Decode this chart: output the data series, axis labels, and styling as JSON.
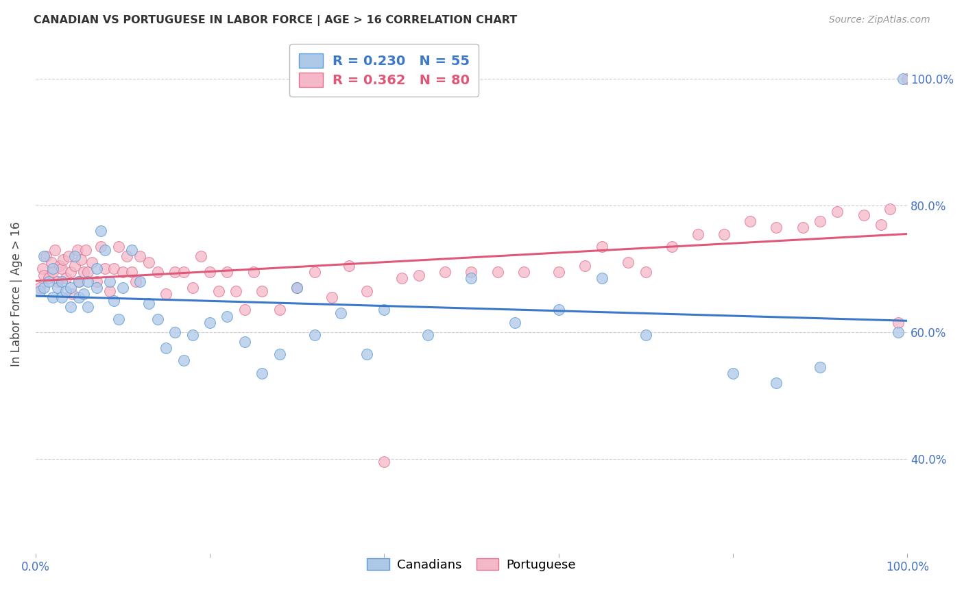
{
  "title": "CANADIAN VS PORTUGUESE IN LABOR FORCE | AGE > 16 CORRELATION CHART",
  "source": "Source: ZipAtlas.com",
  "ylabel": "In Labor Force | Age > 16",
  "x_tick_labels": [
    "0.0%",
    "",
    "",
    "",
    "",
    "100.0%"
  ],
  "x_tick_positions": [
    0.0,
    0.2,
    0.4,
    0.6,
    0.8,
    1.0
  ],
  "y_tick_labels_right": [
    "40.0%",
    "60.0%",
    "80.0%",
    "100.0%"
  ],
  "y_tick_vals_right": [
    0.4,
    0.6,
    0.8,
    1.0
  ],
  "xlim": [
    0.0,
    1.0
  ],
  "ylim": [
    0.25,
    1.07
  ],
  "canadian_fill_color": "#aec8e8",
  "canadian_edge_color": "#5b9bd5",
  "portuguese_fill_color": "#f4b8c8",
  "portuguese_edge_color": "#e07090",
  "canadian_line_color": "#3c78c8",
  "portuguese_line_color": "#e05878",
  "R_canadian": 0.23,
  "N_canadian": 55,
  "R_portuguese": 0.362,
  "N_portuguese": 80,
  "background_color": "#ffffff",
  "grid_color": "#cccccc",
  "title_color": "#333333",
  "axis_label_color": "#4472c4",
  "canadian_x": [
    0.005,
    0.01,
    0.01,
    0.015,
    0.02,
    0.02,
    0.025,
    0.03,
    0.03,
    0.035,
    0.04,
    0.04,
    0.045,
    0.05,
    0.05,
    0.055,
    0.06,
    0.06,
    0.07,
    0.07,
    0.075,
    0.08,
    0.085,
    0.09,
    0.095,
    0.1,
    0.11,
    0.12,
    0.13,
    0.14,
    0.15,
    0.16,
    0.17,
    0.18,
    0.2,
    0.22,
    0.24,
    0.26,
    0.28,
    0.3,
    0.32,
    0.35,
    0.38,
    0.4,
    0.45,
    0.5,
    0.55,
    0.6,
    0.65,
    0.7,
    0.8,
    0.85,
    0.9,
    0.99,
    0.995
  ],
  "canadian_y": [
    0.665,
    0.67,
    0.72,
    0.68,
    0.655,
    0.7,
    0.67,
    0.655,
    0.68,
    0.665,
    0.64,
    0.67,
    0.72,
    0.655,
    0.68,
    0.66,
    0.64,
    0.68,
    0.67,
    0.7,
    0.76,
    0.73,
    0.68,
    0.65,
    0.62,
    0.67,
    0.73,
    0.68,
    0.645,
    0.62,
    0.575,
    0.6,
    0.555,
    0.595,
    0.615,
    0.625,
    0.585,
    0.535,
    0.565,
    0.67,
    0.595,
    0.63,
    0.565,
    0.635,
    0.595,
    0.685,
    0.615,
    0.635,
    0.685,
    0.595,
    0.535,
    0.52,
    0.545,
    0.6,
    1.0
  ],
  "portuguese_x": [
    0.005,
    0.008,
    0.01,
    0.012,
    0.015,
    0.018,
    0.02,
    0.022,
    0.025,
    0.028,
    0.03,
    0.032,
    0.035,
    0.038,
    0.04,
    0.042,
    0.045,
    0.048,
    0.05,
    0.052,
    0.055,
    0.058,
    0.06,
    0.065,
    0.07,
    0.075,
    0.08,
    0.085,
    0.09,
    0.095,
    0.1,
    0.105,
    0.11,
    0.115,
    0.12,
    0.13,
    0.14,
    0.15,
    0.16,
    0.17,
    0.18,
    0.19,
    0.2,
    0.21,
    0.22,
    0.23,
    0.24,
    0.25,
    0.26,
    0.28,
    0.3,
    0.32,
    0.34,
    0.36,
    0.38,
    0.4,
    0.42,
    0.44,
    0.47,
    0.5,
    0.53,
    0.56,
    0.6,
    0.63,
    0.65,
    0.68,
    0.7,
    0.73,
    0.76,
    0.79,
    0.82,
    0.85,
    0.88,
    0.9,
    0.92,
    0.95,
    0.97,
    0.98,
    0.99,
    1.0
  ],
  "portuguese_y": [
    0.67,
    0.7,
    0.69,
    0.72,
    0.685,
    0.71,
    0.695,
    0.73,
    0.68,
    0.705,
    0.7,
    0.715,
    0.685,
    0.72,
    0.695,
    0.66,
    0.705,
    0.73,
    0.68,
    0.715,
    0.695,
    0.73,
    0.695,
    0.71,
    0.68,
    0.735,
    0.7,
    0.665,
    0.7,
    0.735,
    0.695,
    0.72,
    0.695,
    0.68,
    0.72,
    0.71,
    0.695,
    0.66,
    0.695,
    0.695,
    0.67,
    0.72,
    0.695,
    0.665,
    0.695,
    0.665,
    0.635,
    0.695,
    0.665,
    0.635,
    0.67,
    0.695,
    0.655,
    0.705,
    0.665,
    0.395,
    0.685,
    0.69,
    0.695,
    0.695,
    0.695,
    0.695,
    0.695,
    0.705,
    0.735,
    0.71,
    0.695,
    0.735,
    0.755,
    0.755,
    0.775,
    0.765,
    0.765,
    0.775,
    0.79,
    0.785,
    0.77,
    0.795,
    0.615,
    1.0
  ]
}
